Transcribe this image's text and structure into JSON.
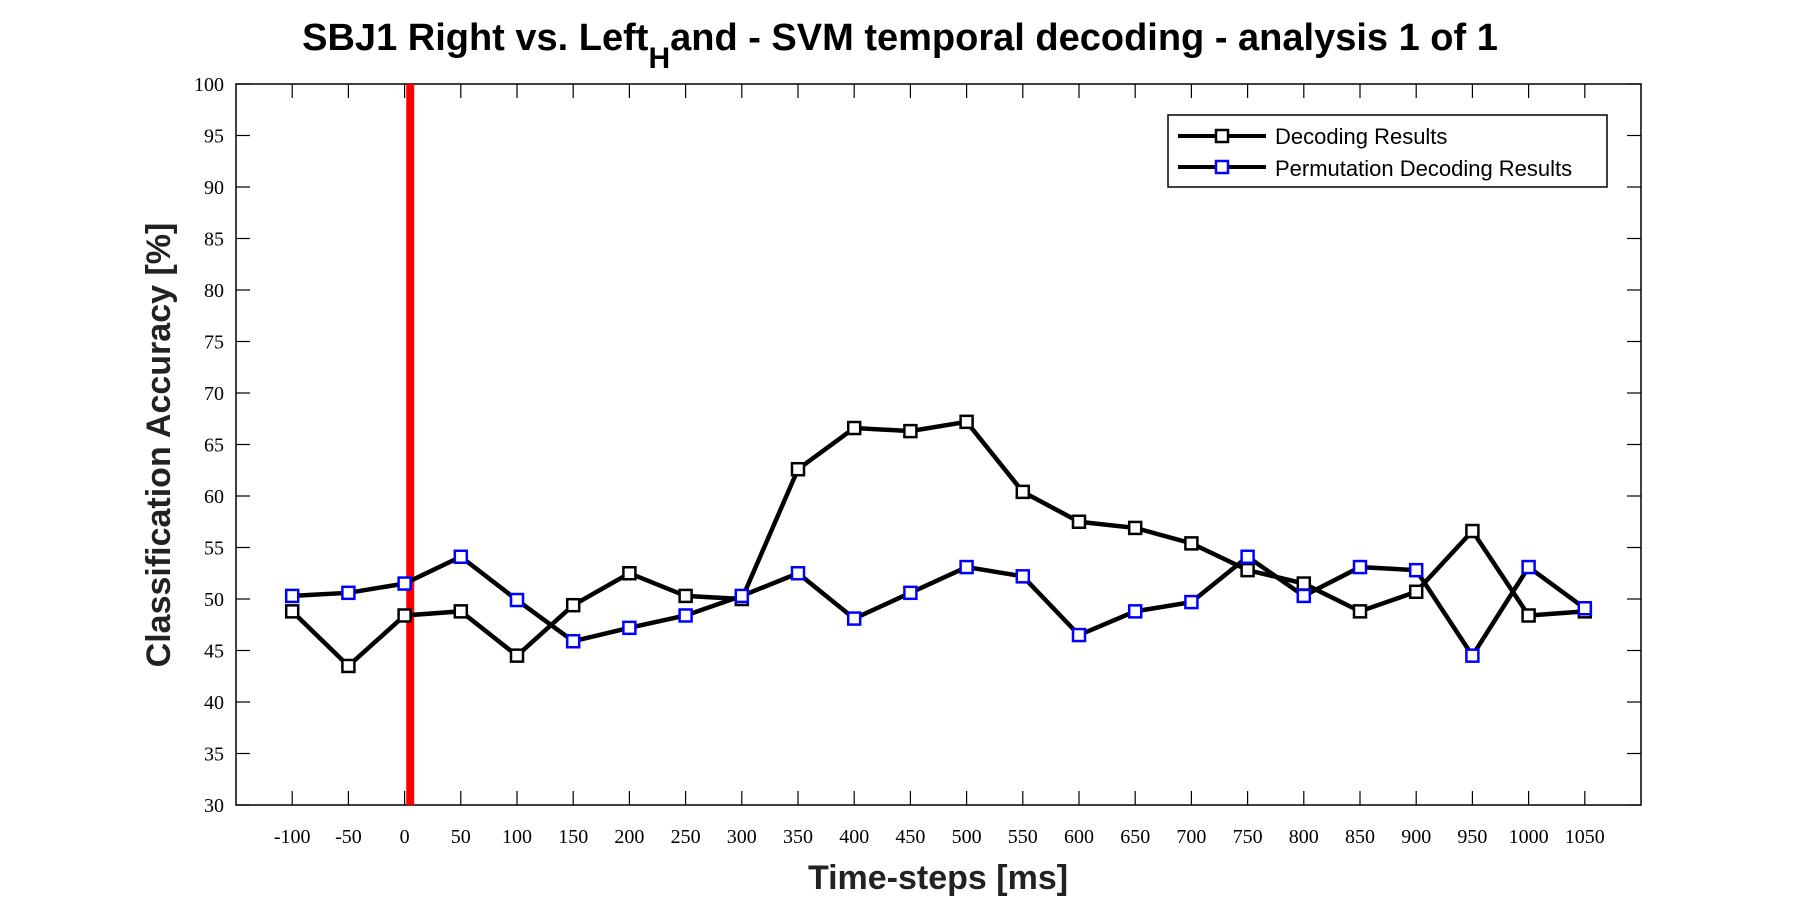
{
  "chart_data": {
    "type": "line",
    "title": "SBJ1 Right vs. Left",
    "title_subscript": "H",
    "title_rest": "and - SVM temporal decoding - analysis 1 of 1",
    "xlabel": "Time-steps [ms]",
    "ylabel": "Classification Accuracy [%]",
    "xlim": [
      -150,
      1100
    ],
    "ylim": [
      30,
      100
    ],
    "x_ticks": [
      -100,
      -50,
      0,
      50,
      100,
      150,
      200,
      250,
      300,
      350,
      400,
      450,
      500,
      550,
      600,
      650,
      700,
      750,
      800,
      850,
      900,
      950,
      1000,
      1050
    ],
    "y_ticks": [
      30,
      35,
      40,
      45,
      50,
      55,
      60,
      65,
      70,
      75,
      80,
      85,
      90,
      95,
      100
    ],
    "x": [
      -100,
      -50,
      0,
      50,
      100,
      150,
      200,
      250,
      300,
      350,
      400,
      450,
      500,
      550,
      600,
      650,
      700,
      750,
      800,
      850,
      900,
      950,
      1000,
      1050
    ],
    "series": [
      {
        "name": "Decoding Results",
        "marker_color": "#000000",
        "values": [
          48.8,
          43.5,
          48.4,
          48.8,
          44.5,
          49.4,
          52.5,
          50.3,
          50.0,
          62.6,
          66.6,
          66.3,
          67.2,
          60.4,
          57.5,
          56.9,
          55.4,
          52.8,
          51.5,
          48.8,
          50.7,
          56.6,
          48.4,
          48.8
        ]
      },
      {
        "name": "Permutation Decoding Results",
        "marker_color": "#0000ff",
        "values": [
          50.3,
          50.6,
          51.5,
          54.1,
          49.9,
          45.9,
          47.2,
          48.4,
          50.3,
          52.5,
          48.1,
          50.6,
          53.1,
          52.2,
          46.5,
          48.8,
          49.7,
          54.1,
          50.3,
          53.1,
          52.8,
          44.5,
          53.1,
          49.1
        ]
      }
    ],
    "reference_line": {
      "x": 5,
      "color": "#ff0000"
    },
    "line_color": "#000000",
    "legend_position": "top-right",
    "grid": false
  }
}
